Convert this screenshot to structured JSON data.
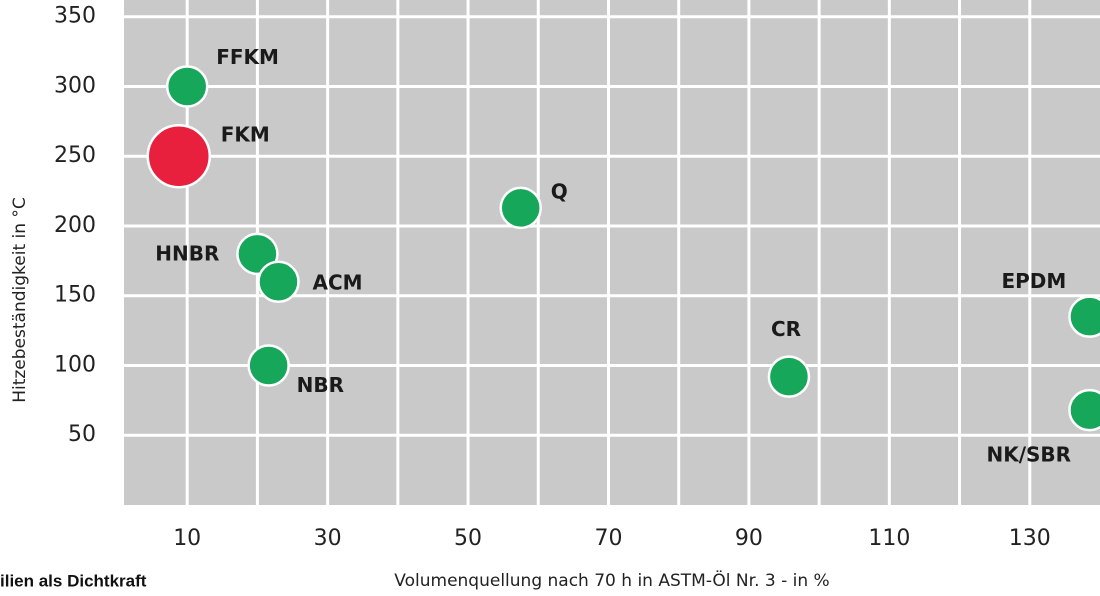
{
  "chart_data": {
    "type": "scatter",
    "x_label": "Volumenquellung nach 70 h in ASTM-Öl Nr. 3 - in %",
    "y_label": "Hitzebeständigkeit in °C",
    "footer_fragment": "ilien als Dichtkraft",
    "labels": [
      "FFKM",
      "FKM",
      "Q",
      "HNBR",
      "ACM",
      "NBR",
      "CR",
      "EPDM",
      "NK/SBR"
    ],
    "x": [
      10,
      8.8,
      57.5,
      20,
      23,
      21.6,
      95.7,
      138.5,
      138.5
    ],
    "values": [
      300,
      250,
      213,
      180,
      160,
      100,
      92,
      135,
      68
    ],
    "sizes": [
      20,
      31,
      20,
      20,
      20,
      20,
      20,
      20,
      20
    ],
    "colors": [
      "#16a75a",
      "#e8203d",
      "#16a75a",
      "#16a75a",
      "#16a75a",
      "#16a75a",
      "#16a75a",
      "#16a75a",
      "#16a75a"
    ],
    "xlim": [
      1,
      140
    ],
    "ylim": [
      0,
      362
    ],
    "xticks": [
      10,
      30,
      50,
      70,
      90,
      110,
      130
    ],
    "x_minor_ticks": [
      20,
      40,
      60,
      80,
      100,
      120
    ],
    "yticks": [
      50,
      100,
      150,
      200,
      250,
      300,
      350
    ],
    "grid": true
  }
}
